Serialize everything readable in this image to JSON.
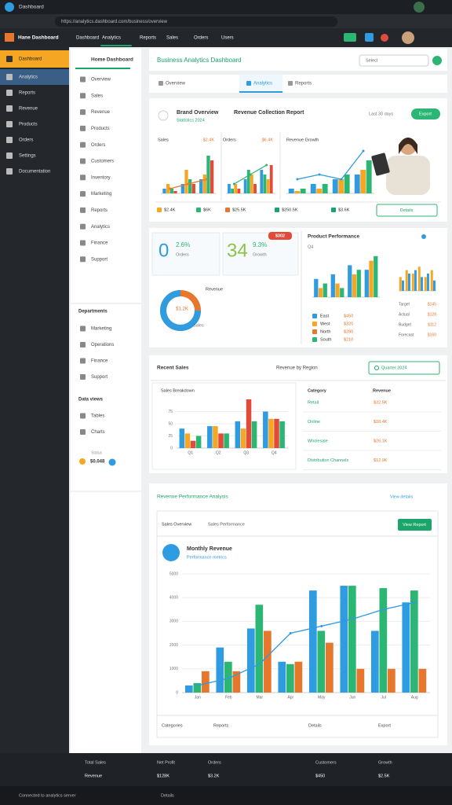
{
  "browser": {
    "tab": "Dashboard",
    "url": "https://analytics.dashboard.com/business/overview"
  },
  "app": {
    "brand": "Hane Dashboard",
    "nav": [
      "Dashboard",
      "Analytics",
      "Reports",
      "Sales",
      "Orders",
      "Users"
    ]
  },
  "sidebar": [
    "Dashboard",
    "Analytics",
    "Reports",
    "Revenue",
    "Products",
    "Orders",
    "Settings",
    "Documentation"
  ],
  "subnav": {
    "title": "Home Dashboard",
    "items": [
      "Overview",
      "Sales",
      "Revenue",
      "Products",
      "Orders",
      "Customers",
      "Inventory",
      "Marketing",
      "Reports",
      "Analytics",
      "Finance",
      "Support"
    ],
    "dept_title": "Departments",
    "dept": [
      "Marketing",
      "Operations",
      "Finance",
      "Support"
    ],
    "views_title": "Data views",
    "views": [
      "Tables",
      "Charts"
    ],
    "status_label": "Status",
    "status_value": "$0.048"
  },
  "header": {
    "title": "Business Analytics Dashboard",
    "select": "Select"
  },
  "tabs": [
    "Overview",
    "Analytics",
    "Reports"
  ],
  "overview": {
    "brand": "Brand Overview",
    "brand_sub": "Statistics 2024",
    "report_title": "Revenue Collection Report",
    "period": "Last 30 days",
    "export": "Export",
    "charts": [
      {
        "title": "Sales",
        "tag": "$2.4K",
        "ylim": [
          0,
          10
        ],
        "series": [
          {
            "color": "#2f9be0",
            "values": [
              1,
              2,
              3
            ]
          },
          {
            "color": "#f5a623",
            "values": [
              2,
              5,
              4
            ]
          },
          {
            "color": "#2bb673",
            "values": [
              1,
              3,
              8
            ]
          },
          {
            "color": "#e04b3a",
            "values": [
              0.5,
              2,
              7
            ]
          }
        ],
        "line": {
          "color": "#e8772e",
          "values": [
            1,
            2,
            3
          ]
        }
      },
      {
        "title": "Orders",
        "tag": "$6.4K",
        "ylim": [
          0,
          10
        ],
        "series": [
          {
            "color": "#2f9be0",
            "values": [
              2,
              3,
              5
            ]
          },
          {
            "color": "#2bb673",
            "values": [
              1,
              5,
              4
            ]
          },
          {
            "color": "#f5a623",
            "values": [
              2,
              4,
              3
            ]
          },
          {
            "color": "#e04b3a",
            "values": [
              1,
              2,
              6
            ]
          }
        ],
        "line": {
          "color": "#2bb673",
          "values": [
            2,
            4,
            6
          ]
        }
      },
      {
        "title": "Revenue Growth",
        "ylim": [
          0,
          10
        ],
        "series": [
          {
            "color": "#2f9be0",
            "values": [
              1,
              2,
              3,
              4
            ]
          },
          {
            "color": "#f5a623",
            "values": [
              0.5,
              1,
              3,
              5
            ]
          },
          {
            "color": "#2bb673",
            "values": [
              1,
              2,
              4,
              7
            ]
          }
        ],
        "line": {
          "color": "#2f9be0",
          "values": [
            3,
            4,
            3,
            9
          ]
        }
      }
    ],
    "stats": [
      "$2.4K",
      "$6K",
      "$25.5K",
      "$250.5K",
      "$3.6K"
    ],
    "details": "Details"
  },
  "kpis": {
    "items": [
      {
        "value": "0",
        "change": "2.6%",
        "label": "Orders"
      },
      {
        "value": "34",
        "change": "9.3%",
        "label": "Growth"
      }
    ],
    "badge": "$302",
    "donut": {
      "percent": 75,
      "label": "$1.2K",
      "title": "Revenue",
      "caption": "Sales"
    }
  },
  "product": {
    "title": "Product Performance",
    "sub": "Q4",
    "chart": {
      "ylim": [
        0,
        10
      ],
      "series": [
        {
          "color": "#2f9be0",
          "values": [
            4,
            5,
            7,
            6
          ]
        },
        {
          "color": "#f5a623",
          "values": [
            2,
            3,
            5,
            8
          ]
        },
        {
          "color": "#2bb673",
          "values": [
            3,
            2,
            6,
            9
          ]
        }
      ]
    },
    "legend": [
      {
        "name": "East",
        "value": "$450",
        "color": "#2f9be0"
      },
      {
        "name": "West",
        "value": "$320",
        "color": "#f5a623"
      },
      {
        "name": "North",
        "value": "$280",
        "color": "#e8772e"
      },
      {
        "name": "South",
        "value": "$210",
        "color": "#2bb673"
      }
    ],
    "mini": {
      "ylim": [
        0,
        10
      ],
      "series": [
        {
          "color": "#f5a623",
          "values": [
            4,
            6,
            5,
            7,
            4,
            6
          ]
        },
        {
          "color": "#2f9be0",
          "values": [
            3,
            5,
            6,
            4,
            5,
            3
          ]
        }
      ]
    },
    "mini_legend": [
      {
        "name": "Target",
        "value": "$145"
      },
      {
        "name": "Actual",
        "value": "$128"
      },
      {
        "name": "Budget",
        "value": "$112"
      },
      {
        "name": "Forecast",
        "value": "$160"
      }
    ]
  },
  "sales": {
    "title": "Recent Sales",
    "subtitle": "Revenue by Region",
    "filter": "Quarter 2024",
    "chart_title": "Sales Breakdown",
    "chart": {
      "ylim": [
        0,
        100
      ],
      "yticks": [
        0,
        25,
        50,
        75
      ],
      "categories": [
        "Q1",
        "Q2",
        "Q3",
        "Q4"
      ],
      "series": [
        {
          "color": "#2f9be0",
          "values": [
            40,
            45,
            55,
            75
          ]
        },
        {
          "color": "#f5a623",
          "values": [
            30,
            45,
            40,
            60
          ]
        },
        {
          "color": "#e04b3a",
          "values": [
            15,
            30,
            100,
            60
          ]
        },
        {
          "color": "#2bb673",
          "values": [
            25,
            30,
            55,
            55
          ]
        }
      ]
    },
    "table": {
      "headers": [
        "Category",
        "Revenue"
      ],
      "rows": [
        [
          "Retail",
          "$32.5K"
        ],
        [
          "Online",
          "$18.4K"
        ],
        [
          "Wholesale",
          "$26.1K"
        ],
        [
          "Distribution Channels",
          "$12.9K"
        ]
      ]
    }
  },
  "revenue": {
    "title": "Revenue Performance Analysis",
    "link": "View details",
    "tab1": "Sales Overview",
    "tab2": "Sales Performance",
    "button": "View Report",
    "icon_title": "Monthly Revenue",
    "icon_sub": "Performance metrics",
    "chart": {
      "ylim": [
        0,
        5000
      ],
      "yticks": [
        0,
        1000,
        2000,
        3000,
        4000,
        5000
      ],
      "categories": [
        "Jan",
        "Feb",
        "Mar",
        "Apr",
        "May",
        "Jun",
        "Jul",
        "Aug"
      ],
      "series": [
        {
          "color": "#2f9be0",
          "values": [
            300,
            1900,
            2700,
            1300,
            4300,
            4500,
            2600,
            3800
          ]
        },
        {
          "color": "#2bb673",
          "values": [
            400,
            1300,
            3700,
            1200,
            2600,
            4500,
            4400,
            4300
          ]
        },
        {
          "color": "#e8772e",
          "values": [
            900,
            900,
            2600,
            1300,
            2100,
            1000,
            1000,
            1000
          ]
        }
      ],
      "line": {
        "color": "#2f9be0",
        "values": [
          300,
          600,
          1200,
          2500,
          2800,
          3100,
          3500,
          3800
        ]
      }
    },
    "footer": [
      "Categories",
      "Reports",
      "Details",
      "Export"
    ]
  },
  "footer": [
    {
      "label": "Total Sales",
      "value": "Revenue"
    },
    {
      "label": "Net Profit",
      "value": "$128K"
    },
    {
      "label": "Orders",
      "value": "$3.2K"
    },
    {
      "label": "Customers",
      "value": "$450"
    },
    {
      "label": "Growth",
      "value": "$2.5K"
    }
  ],
  "statusbar": {
    "text": "Connected to analytics server",
    "time": "Details"
  }
}
